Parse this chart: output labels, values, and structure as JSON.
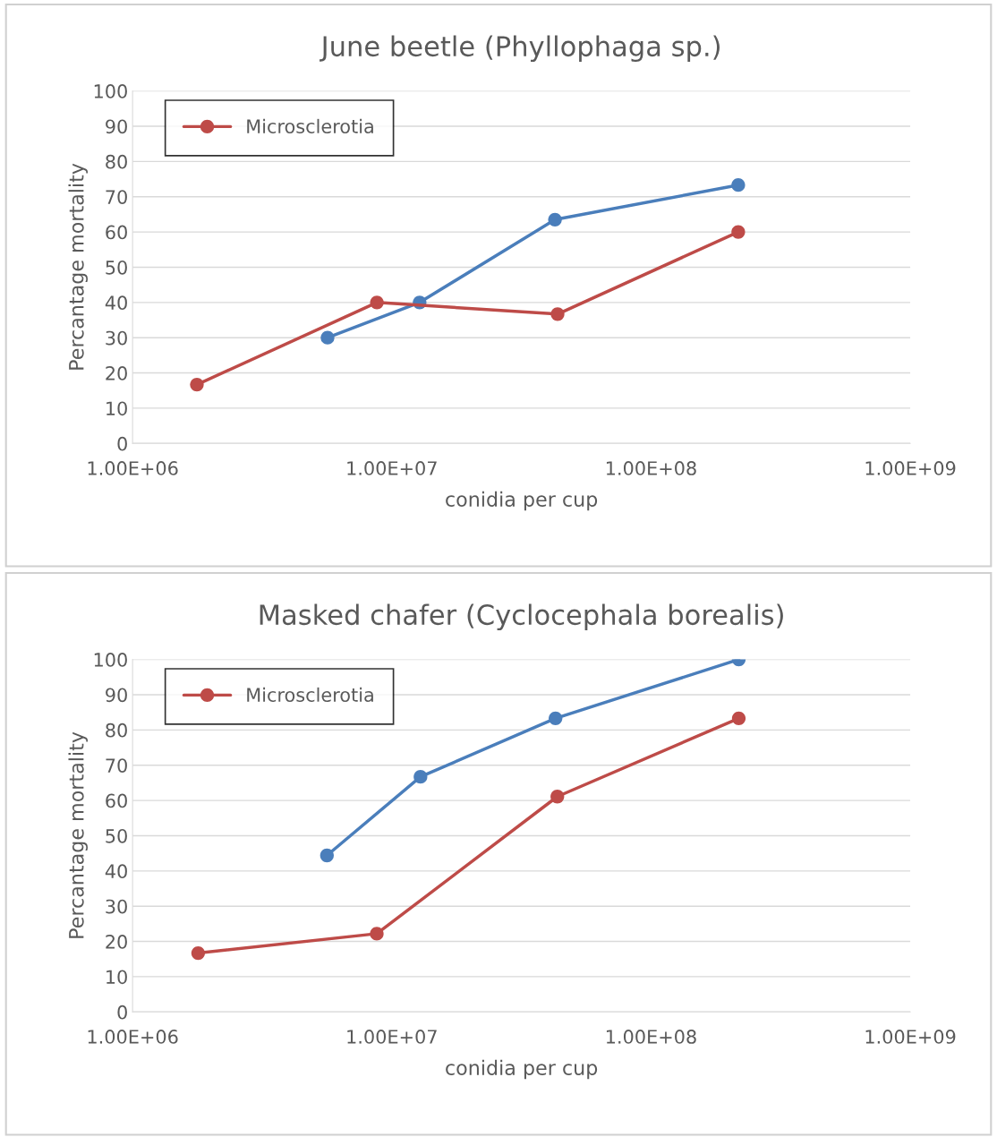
{
  "chart_data": [
    {
      "type": "line",
      "title": "June beetle (Phyllophaga sp.)",
      "xlabel": "conidia per cup",
      "ylabel": "Percantage mortality",
      "log": "x",
      "grid": "y",
      "legend": "top left",
      "marker": "circle",
      "line_style": "solid",
      "xlim": [
        1000000,
        1000000000
      ],
      "xticks": [
        {
          "value": 1000000,
          "label": "1.00E+06"
        },
        {
          "value": 10000000,
          "label": "1.00E+07"
        },
        {
          "value": 100000000,
          "label": "1.00E+08"
        },
        {
          "value": 1000000000,
          "label": "1.00E+09"
        }
      ],
      "ylim": [
        0,
        100
      ],
      "yticks": [
        0,
        10,
        20,
        30,
        40,
        50,
        60,
        70,
        80,
        90,
        100
      ],
      "series": [
        {
          "color": "#4a7ebb",
          "x": [
            5650000,
            12800000,
            42600000,
            217000000
          ],
          "values": [
            30,
            40,
            63.5,
            73.3
          ]
        },
        {
          "name": "Microsclerotia",
          "color": "#be4b48",
          "x": [
            1770000,
            8760000,
            43600000,
            217000000
          ],
          "values": [
            16.7,
            40,
            36.7,
            60
          ]
        }
      ]
    },
    {
      "type": "line",
      "title": "Masked chafer (Cyclocephala borealis)",
      "xlabel": "conidia per cup",
      "ylabel": "Percantage mortality",
      "log": "x",
      "grid": "y",
      "legend": "top left",
      "marker": "circle",
      "line_style": "solid",
      "xlim": [
        1000000,
        1000000000
      ],
      "xticks": [
        {
          "value": 1000000,
          "label": "1.00E+06"
        },
        {
          "value": 10000000,
          "label": "1.00E+07"
        },
        {
          "value": 100000000,
          "label": "1.00E+08"
        },
        {
          "value": 1000000000,
          "label": "1.00E+09"
        }
      ],
      "ylim": [
        0,
        100
      ],
      "yticks": [
        0,
        10,
        20,
        30,
        40,
        50,
        60,
        70,
        80,
        90,
        100
      ],
      "series": [
        {
          "color": "#4a7ebb",
          "x": [
            5620000,
            12900000,
            42800000,
            218000000
          ],
          "values": [
            44.4,
            66.7,
            83.3,
            100
          ]
        },
        {
          "name": "Microsclerotia",
          "color": "#be4b48",
          "x": [
            1790000,
            8750000,
            43500000,
            218000000
          ],
          "values": [
            16.7,
            22.2,
            61.1,
            83.3
          ]
        }
      ]
    }
  ]
}
